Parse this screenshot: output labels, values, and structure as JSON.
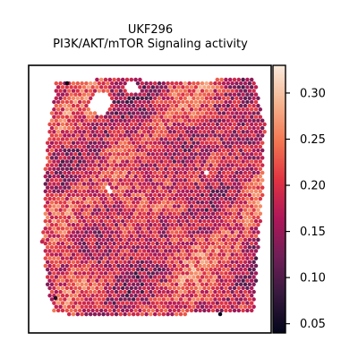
{
  "chart_data": {
    "type": "heatmap",
    "subtype": "spatial-hexbin",
    "title": "UKF296",
    "subtitle": "PI3K/AKT/mTOR Signaling activity",
    "xlabel": "",
    "ylabel": "",
    "colorbar": {
      "label": "",
      "range": [
        0.04,
        0.33
      ],
      "ticks": [
        0.05,
        0.1,
        0.15,
        0.2,
        0.25,
        0.3
      ],
      "tick_labels": [
        "0.05",
        "0.10",
        "0.15",
        "0.20",
        "0.25",
        "0.30"
      ],
      "colormap": "rocket"
    },
    "spot_value_range": [
      0.04,
      0.33
    ],
    "spot_value_mean": 0.19,
    "spot_count_approx": 2400
  },
  "colors": {
    "cmap": [
      "#03051a",
      "#36193e",
      "#701f57",
      "#ae1759",
      "#e13342",
      "#f37651",
      "#f6b48f",
      "#faebdd"
    ],
    "frame": "#000000",
    "background": "#ffffff"
  }
}
